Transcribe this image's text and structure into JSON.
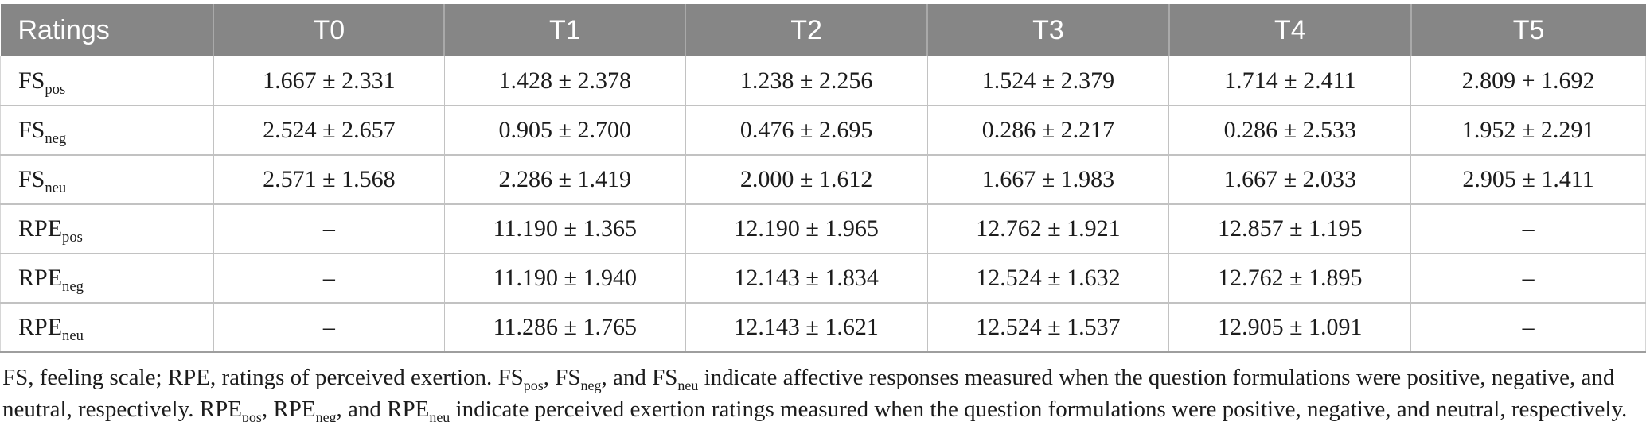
{
  "colors": {
    "header_bg": "#868686",
    "header_text": "#ffffff",
    "body_text": "#1c1c1c",
    "grid_line": "#c2c2c2",
    "header_divider": "#a9a9a9",
    "table_bottom_border": "#9e9e9e"
  },
  "table": {
    "columns": [
      "Ratings",
      "T0",
      "T1",
      "T2",
      "T3",
      "T4",
      "T5"
    ],
    "rows": [
      {
        "label": {
          "main": "FS",
          "sub": "pos"
        },
        "values": [
          "1.667 ± 2.331",
          "1.428 ± 2.378",
          "1.238 ± 2.256",
          "1.524 ± 2.379",
          "1.714 ± 2.411",
          "2.809 + 1.692"
        ]
      },
      {
        "label": {
          "main": "FS",
          "sub": "neg"
        },
        "values": [
          "2.524 ± 2.657",
          "0.905 ± 2.700",
          "0.476 ± 2.695",
          "0.286 ± 2.217",
          "0.286 ± 2.533",
          "1.952 ± 2.291"
        ]
      },
      {
        "label": {
          "main": "FS",
          "sub": "neu"
        },
        "values": [
          "2.571 ± 1.568",
          "2.286 ± 1.419",
          "2.000 ± 1.612",
          "1.667 ± 1.983",
          "1.667 ± 2.033",
          "2.905 ± 1.411"
        ]
      },
      {
        "label": {
          "main": "RPE",
          "sub": "pos"
        },
        "values": [
          "–",
          "11.190 ± 1.365",
          "12.190 ± 1.965",
          "12.762 ± 1.921",
          "12.857 ± 1.195",
          "–"
        ]
      },
      {
        "label": {
          "main": "RPE",
          "sub": "neg"
        },
        "values": [
          "–",
          "11.190 ± 1.940",
          "12.143 ± 1.834",
          "12.524 ± 1.632",
          "12.762 ± 1.895",
          "–"
        ]
      },
      {
        "label": {
          "main": "RPE",
          "sub": "neu"
        },
        "values": [
          "–",
          "11.286 ± 1.765",
          "12.143 ± 1.621",
          "12.524 ± 1.537",
          "12.905 ± 1.091",
          "–"
        ]
      }
    ]
  },
  "footnote": {
    "segments": [
      {
        "t": "FS, feeling scale; RPE, ratings of perceived exertion. FS"
      },
      {
        "t": "pos",
        "s": true
      },
      {
        "t": ", FS"
      },
      {
        "t": "neg",
        "s": true
      },
      {
        "t": ", and FS"
      },
      {
        "t": "neu",
        "s": true
      },
      {
        "t": " indicate affective responses measured when the question formulations were positive, negative, and neutral, respectively. RPE"
      },
      {
        "t": "pos",
        "s": true
      },
      {
        "t": ", RPE"
      },
      {
        "t": "neg",
        "s": true
      },
      {
        "t": ", and RPE"
      },
      {
        "t": "neu",
        "s": true
      },
      {
        "t": " indicate perceived exertion ratings measured when the question formulations were positive, negative, and neutral, respectively."
      }
    ]
  }
}
